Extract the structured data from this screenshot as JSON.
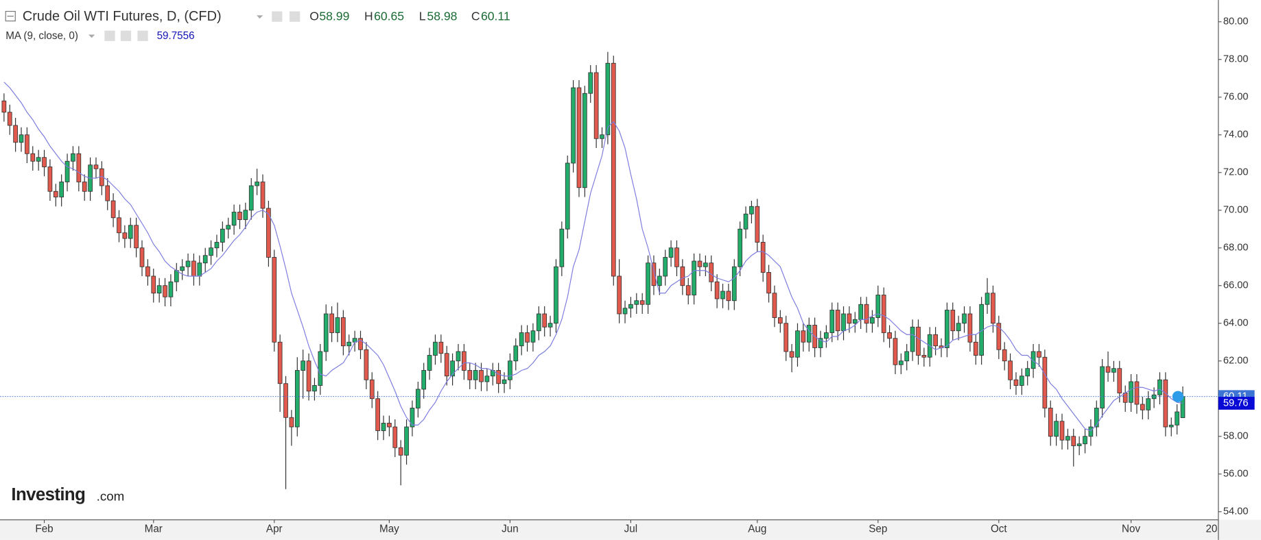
{
  "chart_data": {
    "type": "candlestick",
    "title": "Crude Oil WTI Futures, D, (CFD)",
    "ohlc_labels": [
      "O",
      "H",
      "L",
      "C"
    ],
    "indicator_name": "MA (9, close, 0)",
    "ma_value_label": "59.76",
    "logo": {
      "main": "Investing",
      "suffix": ".com"
    },
    "up_color": "#22ad6b",
    "down_color": "#e2594d",
    "ma_color": "#7b7be0",
    "ylim": [
      53.57,
      81.15
    ],
    "yticks": [
      {
        "value": 54,
        "label": "54.00"
      },
      {
        "value": 56,
        "label": "56.00"
      },
      {
        "value": 58,
        "label": "58.00"
      },
      {
        "value": 60,
        "label": "60.00"
      },
      {
        "value": 62,
        "label": "62.00"
      },
      {
        "value": 64,
        "label": "64.00"
      },
      {
        "value": 66,
        "label": "66.00"
      },
      {
        "value": 68,
        "label": "68.00"
      },
      {
        "value": 70,
        "label": "70.00"
      },
      {
        "value": 72,
        "label": "72.00"
      },
      {
        "value": 74,
        "label": "74.00"
      },
      {
        "value": 76,
        "label": "76.00"
      },
      {
        "value": 78,
        "label": "78.00"
      },
      {
        "value": 80,
        "label": "80.00"
      }
    ],
    "categories": [
      null,
      null,
      null,
      null,
      null,
      null,
      null,
      "Feb",
      null,
      null,
      null,
      null,
      null,
      null,
      null,
      null,
      null,
      null,
      null,
      null,
      null,
      null,
      null,
      null,
      null,
      null,
      "Mar",
      null,
      null,
      null,
      null,
      null,
      null,
      null,
      null,
      null,
      null,
      null,
      null,
      null,
      null,
      null,
      null,
      null,
      null,
      null,
      null,
      "Apr",
      null,
      null,
      null,
      null,
      null,
      null,
      null,
      null,
      null,
      null,
      null,
      null,
      null,
      null,
      null,
      null,
      null,
      null,
      null,
      "May",
      null,
      null,
      null,
      null,
      null,
      null,
      null,
      null,
      null,
      null,
      null,
      null,
      null,
      null,
      null,
      null,
      null,
      null,
      null,
      null,
      "Jun",
      null,
      null,
      null,
      null,
      null,
      null,
      null,
      null,
      null,
      null,
      null,
      null,
      null,
      null,
      null,
      null,
      null,
      null,
      null,
      null,
      "Jul",
      null,
      null,
      null,
      null,
      null,
      null,
      null,
      null,
      null,
      null,
      null,
      null,
      null,
      null,
      null,
      null,
      null,
      null,
      null,
      null,
      null,
      "Aug",
      null,
      null,
      null,
      null,
      null,
      null,
      null,
      null,
      null,
      null,
      null,
      null,
      null,
      null,
      null,
      null,
      null,
      null,
      null,
      null,
      "Sep",
      null,
      null,
      null,
      null,
      null,
      null,
      null,
      null,
      null,
      null,
      null,
      null,
      null,
      null,
      null,
      null,
      null,
      null,
      null,
      null,
      "Oct",
      null,
      null,
      null,
      null,
      null,
      null,
      null,
      null,
      null,
      null,
      null,
      null,
      null,
      null,
      null,
      null,
      null,
      null,
      null,
      null,
      null,
      null,
      "Nov",
      null,
      null,
      null,
      null,
      null,
      null,
      null,
      null,
      null
    ],
    "future_categories": [
      null,
      null,
      null,
      null,
      "20"
    ],
    "open": [
      75.8,
      75.2,
      74.5,
      73.6,
      74.0,
      73.0,
      72.6,
      72.8,
      72.3,
      71.0,
      70.7,
      71.5,
      72.6,
      73.0,
      71.5,
      71.0,
      72.4,
      72.2,
      71.3,
      70.5,
      69.6,
      68.8,
      68.5,
      69.2,
      68.0,
      67.0,
      66.5,
      65.6,
      66.0,
      65.4,
      66.2,
      66.8,
      67.0,
      67.3,
      66.5,
      67.2,
      67.6,
      68.0,
      68.3,
      69.0,
      69.2,
      69.9,
      69.5,
      70.0,
      71.3,
      71.5,
      70.1,
      67.5,
      63.0,
      60.8,
      59.0,
      58.5,
      61.5,
      62.0,
      60.4,
      60.7,
      62.5,
      64.5,
      63.5,
      64.3,
      62.8,
      63.0,
      63.2,
      62.6,
      61.0,
      60.0,
      58.3,
      58.7,
      58.5,
      57.4,
      57.0,
      58.5,
      59.5,
      60.5,
      61.5,
      62.3,
      63.0,
      62.4,
      61.2,
      62.0,
      62.5,
      61.5,
      61.0,
      61.5,
      60.9,
      61.2,
      61.5,
      60.8,
      61.0,
      62.0,
      62.8,
      63.5,
      63.0,
      63.6,
      64.5,
      63.8,
      64.0,
      67.0,
      69.0,
      72.5,
      76.5,
      71.2,
      76.2,
      77.3,
      73.8,
      74.0,
      77.8,
      66.5,
      64.5,
      64.8,
      65.0,
      65.2,
      65.0,
      67.2,
      66.0,
      66.5,
      67.5,
      68.0,
      67.0,
      66.0,
      65.5,
      67.3,
      67.0,
      67.2,
      66.2,
      65.3,
      65.7,
      65.2,
      67.0,
      69.0,
      69.8,
      70.2,
      68.3,
      66.7,
      65.6,
      64.3,
      64.0,
      62.5,
      62.2,
      63.6,
      63.0,
      63.9,
      62.7,
      63.2,
      63.5,
      64.7,
      63.6,
      64.5,
      64.0,
      64.2,
      65.0,
      64.0,
      64.3,
      65.5,
      63.5,
      63.2,
      61.8,
      62.0,
      62.5,
      63.8,
      62.3,
      62.2,
      63.4,
      62.8,
      62.7,
      64.7,
      63.6,
      64.0,
      64.5,
      63.0,
      62.3,
      65.0,
      65.6,
      64.0,
      62.6,
      62.0,
      61.0,
      60.7,
      61.2,
      61.6,
      62.5,
      62.2,
      59.5,
      58.0,
      58.8,
      57.8,
      58.0,
      57.5,
      57.6,
      58.0,
      58.5,
      59.5,
      61.7,
      61.4,
      61.6,
      60.3,
      59.8,
      60.9,
      59.7,
      59.4,
      60.0,
      60.2,
      61.0,
      58.5,
      58.6,
      58.99
    ],
    "high": [
      76.2,
      75.6,
      74.9,
      74.4,
      74.4,
      73.4,
      73.2,
      73.2,
      72.7,
      71.4,
      71.9,
      73.0,
      73.4,
      73.4,
      71.9,
      72.8,
      72.8,
      72.6,
      71.7,
      70.9,
      70.0,
      69.2,
      69.6,
      69.6,
      68.4,
      67.4,
      66.9,
      66.4,
      66.4,
      66.6,
      67.2,
      67.4,
      67.7,
      67.7,
      67.6,
      68.0,
      68.4,
      68.7,
      69.4,
      69.6,
      70.3,
      70.3,
      70.4,
      71.7,
      72.2,
      71.9,
      70.5,
      67.9,
      63.4,
      61.2,
      59.4,
      62.2,
      62.6,
      62.4,
      61.1,
      62.9,
      65.0,
      64.9,
      65.1,
      64.7,
      63.4,
      63.6,
      63.6,
      63.0,
      61.4,
      60.4,
      59.1,
      59.1,
      58.9,
      57.8,
      58.9,
      59.9,
      60.9,
      61.9,
      62.7,
      63.4,
      63.4,
      62.8,
      62.4,
      62.9,
      62.9,
      61.9,
      61.9,
      61.9,
      61.6,
      61.9,
      61.9,
      61.4,
      62.4,
      63.2,
      63.9,
      63.9,
      64.0,
      64.9,
      64.9,
      64.4,
      67.4,
      69.4,
      72.9,
      76.9,
      76.9,
      76.6,
      77.7,
      77.7,
      74.4,
      78.4,
      78.2,
      67.4,
      65.2,
      65.4,
      65.6,
      65.6,
      67.6,
      67.6,
      66.9,
      67.9,
      68.4,
      68.4,
      67.4,
      66.4,
      67.7,
      67.7,
      67.6,
      67.6,
      66.6,
      66.1,
      66.1,
      67.4,
      69.4,
      70.2,
      70.5,
      70.6,
      68.7,
      67.1,
      66.0,
      64.7,
      64.4,
      62.9,
      64.0,
      64.0,
      64.3,
      64.3,
      63.6,
      63.9,
      65.1,
      65.1,
      64.9,
      64.9,
      64.6,
      65.4,
      65.4,
      64.7,
      66.0,
      65.9,
      63.9,
      63.6,
      62.4,
      62.9,
      64.2,
      64.2,
      62.7,
      63.8,
      63.8,
      63.2,
      65.1,
      65.1,
      64.4,
      64.9,
      64.9,
      63.4,
      65.4,
      66.4,
      66.0,
      64.4,
      63.0,
      62.4,
      61.4,
      61.6,
      62.0,
      62.9,
      62.9,
      62.6,
      59.9,
      59.2,
      59.2,
      58.4,
      58.4,
      58.0,
      58.4,
      58.9,
      59.9,
      62.1,
      62.5,
      62.0,
      62.0,
      60.7,
      61.3,
      61.3,
      60.1,
      60.4,
      60.6,
      61.4,
      61.4,
      59.0,
      59.7,
      60.65
    ],
    "low": [
      74.7,
      74.0,
      73.1,
      73.1,
      72.5,
      72.1,
      72.1,
      71.8,
      70.5,
      70.2,
      70.2,
      71.0,
      72.1,
      71.0,
      70.5,
      70.5,
      71.7,
      70.8,
      70.0,
      69.1,
      68.3,
      68.0,
      68.0,
      67.5,
      66.5,
      66.0,
      65.1,
      65.1,
      64.9,
      64.9,
      65.7,
      66.3,
      66.5,
      66.0,
      66.0,
      66.7,
      67.1,
      67.5,
      67.8,
      68.5,
      68.7,
      69.0,
      69.0,
      69.5,
      70.8,
      69.6,
      67.0,
      62.5,
      59.3,
      55.2,
      57.5,
      58.0,
      60.0,
      59.9,
      59.9,
      60.2,
      62.0,
      63.0,
      63.0,
      62.3,
      62.3,
      62.5,
      62.1,
      60.5,
      59.5,
      57.8,
      57.8,
      58.0,
      56.9,
      55.4,
      56.5,
      58.0,
      59.0,
      60.0,
      61.0,
      61.8,
      61.9,
      60.7,
      60.7,
      61.5,
      61.0,
      60.5,
      60.5,
      60.4,
      60.4,
      60.7,
      60.3,
      60.3,
      60.5,
      61.5,
      62.3,
      62.5,
      62.5,
      63.1,
      63.3,
      63.3,
      63.5,
      66.5,
      68.5,
      72.0,
      70.7,
      70.7,
      75.7,
      73.3,
      73.3,
      73.5,
      66.0,
      64.0,
      64.0,
      64.3,
      64.5,
      64.5,
      64.5,
      65.5,
      65.5,
      66.0,
      67.0,
      66.5,
      65.5,
      65.0,
      65.0,
      66.5,
      66.5,
      65.7,
      64.8,
      64.8,
      64.7,
      64.7,
      66.5,
      68.5,
      69.3,
      67.8,
      66.2,
      65.1,
      63.8,
      63.5,
      62.0,
      61.4,
      61.7,
      62.5,
      62.5,
      62.2,
      62.2,
      62.7,
      63.0,
      63.1,
      63.1,
      63.5,
      63.5,
      63.7,
      63.5,
      63.5,
      63.8,
      63.0,
      62.7,
      61.3,
      61.3,
      61.5,
      62.0,
      61.8,
      61.7,
      61.7,
      62.3,
      62.2,
      62.2,
      63.1,
      63.1,
      63.5,
      62.5,
      61.8,
      61.8,
      64.5,
      63.5,
      62.1,
      61.5,
      60.5,
      60.2,
      60.2,
      60.7,
      61.1,
      61.7,
      59.0,
      57.5,
      57.5,
      57.3,
      57.3,
      56.4,
      57.0,
      57.1,
      57.5,
      58.0,
      59.0,
      60.9,
      60.9,
      59.8,
      59.3,
      59.3,
      59.2,
      58.9,
      58.9,
      59.5,
      59.7,
      58.0,
      58.0,
      58.1,
      58.98
    ],
    "close": [
      75.2,
      74.5,
      73.6,
      74.0,
      73.0,
      72.6,
      72.8,
      72.3,
      71.0,
      70.7,
      71.5,
      72.6,
      73.0,
      71.5,
      71.0,
      72.4,
      72.2,
      71.3,
      70.5,
      69.6,
      68.8,
      68.5,
      69.2,
      68.0,
      67.0,
      66.5,
      65.6,
      66.0,
      65.4,
      66.2,
      66.8,
      67.0,
      67.3,
      66.5,
      67.2,
      67.6,
      68.0,
      68.3,
      69.0,
      69.2,
      69.9,
      69.5,
      70.0,
      71.3,
      71.5,
      70.1,
      67.5,
      63.0,
      60.8,
      59.0,
      58.5,
      61.5,
      62.0,
      60.4,
      60.7,
      62.5,
      64.5,
      63.5,
      64.3,
      62.8,
      63.0,
      63.2,
      62.6,
      61.0,
      60.0,
      58.3,
      58.7,
      58.5,
      57.4,
      57.0,
      58.5,
      59.5,
      60.5,
      61.5,
      62.3,
      63.0,
      62.4,
      61.2,
      62.0,
      62.5,
      61.5,
      61.0,
      61.5,
      60.9,
      61.2,
      61.5,
      60.8,
      61.0,
      62.0,
      62.8,
      63.5,
      63.0,
      63.6,
      64.5,
      63.8,
      64.0,
      67.0,
      69.0,
      72.5,
      76.5,
      71.2,
      76.2,
      77.3,
      73.8,
      74.0,
      77.8,
      66.5,
      64.5,
      64.8,
      65.0,
      65.2,
      65.0,
      67.2,
      66.0,
      66.5,
      67.5,
      68.0,
      67.0,
      66.0,
      65.5,
      67.3,
      67.0,
      67.2,
      66.2,
      65.3,
      65.7,
      65.2,
      67.0,
      69.0,
      69.8,
      70.2,
      68.3,
      66.7,
      65.6,
      64.3,
      64.0,
      62.5,
      62.2,
      63.6,
      63.0,
      63.9,
      62.7,
      63.2,
      63.5,
      64.7,
      63.6,
      64.5,
      64.0,
      64.2,
      65.0,
      64.0,
      64.3,
      65.5,
      63.5,
      63.2,
      61.8,
      62.0,
      62.5,
      63.8,
      62.3,
      62.2,
      63.4,
      62.8,
      62.7,
      64.7,
      63.6,
      64.0,
      64.5,
      63.0,
      62.3,
      65.0,
      65.6,
      64.0,
      62.6,
      62.0,
      61.0,
      60.7,
      61.2,
      61.6,
      62.5,
      62.2,
      59.5,
      58.0,
      58.8,
      57.8,
      58.0,
      57.5,
      57.6,
      58.0,
      58.5,
      59.5,
      61.7,
      61.4,
      61.6,
      60.3,
      59.8,
      60.9,
      59.7,
      59.4,
      60.0,
      60.2,
      61.0,
      58.5,
      58.6,
      59.3,
      60.11
    ],
    "ma": [
      76.8,
      76.5,
      76.1,
      75.7,
      75.2,
      74.8,
      74.3,
      73.9,
      73.4,
      73.0,
      72.6,
      72.3,
      72.2,
      72.0,
      71.8,
      71.7,
      71.7,
      71.8,
      71.6,
      71.3,
      71.0,
      70.6,
      70.3,
      69.8,
      69.3,
      68.8,
      68.2,
      67.8,
      67.3,
      67.0,
      66.8,
      66.6,
      66.5,
      66.5,
      66.5,
      66.7,
      66.9,
      67.3,
      67.6,
      68.0,
      68.4,
      68.7,
      69.1,
      69.6,
      69.9,
      70.0,
      69.8,
      69.2,
      68.1,
      66.9,
      65.6,
      64.7,
      63.8,
      62.8,
      62.0,
      61.3,
      61.2,
      61.5,
      61.7,
      61.9,
      62.4,
      63.0,
      63.1,
      62.9,
      62.6,
      62.3,
      61.8,
      61.1,
      60.4,
      59.6,
      59.0,
      58.6,
      58.6,
      58.9,
      59.4,
      59.8,
      60.4,
      60.9,
      61.3,
      61.6,
      61.9,
      61.9,
      61.8,
      61.6,
      61.6,
      61.5,
      61.3,
      61.2,
      61.2,
      61.3,
      61.5,
      61.6,
      61.9,
      62.3,
      62.5,
      62.8,
      63.4,
      64.2,
      65.4,
      67.0,
      67.9,
      69.4,
      70.9,
      71.9,
      72.9,
      74.4,
      74.7,
      74.2,
      73.3,
      71.9,
      70.6,
      69.0,
      68.0,
      66.8,
      65.6,
      65.6,
      66.0,
      66.2,
      66.4,
      66.5,
      66.8,
      66.8,
      66.8,
      66.6,
      66.4,
      66.3,
      66.2,
      66.4,
      66.8,
      67.3,
      67.6,
      67.8,
      67.8,
      67.6,
      67.3,
      67.0,
      66.2,
      65.4,
      64.8,
      64.0,
      63.6,
      63.3,
      63.1,
      63.0,
      63.3,
      63.3,
      63.6,
      63.7,
      63.9,
      64.2,
      64.2,
      64.4,
      64.5,
      64.4,
      64.2,
      63.9,
      63.6,
      63.4,
      63.4,
      63.2,
      63.0,
      62.8,
      62.6,
      62.7,
      62.8,
      63.1,
      63.2,
      63.3,
      63.4,
      63.4,
      63.6,
      63.8,
      63.9,
      63.8,
      63.5,
      63.1,
      62.6,
      62.3,
      62.3,
      62.0,
      61.8,
      61.3,
      60.8,
      60.5,
      60.0,
      59.6,
      59.2,
      58.8,
      58.4,
      58.3,
      58.6,
      59.1,
      59.5,
      59.9,
      60.1,
      60.3,
      60.5,
      60.6,
      60.6,
      60.5,
      60.4,
      60.5,
      60.3,
      60.0,
      59.8,
      59.7556
    ]
  }
}
